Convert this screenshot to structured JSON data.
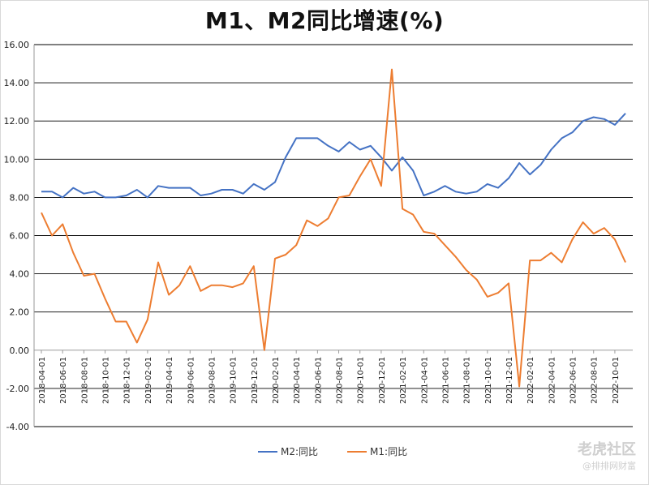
{
  "title": "M1、M2同比增速(%)",
  "watermark": {
    "main": "老虎社区",
    "sub": "@排排网财富"
  },
  "chart_data": {
    "type": "line",
    "title": "M1、M2同比增速(%)",
    "ylim": [
      -4,
      16
    ],
    "yticks": [
      "16.00",
      "14.00",
      "12.00",
      "10.00",
      "8.00",
      "6.00",
      "4.00",
      "2.00",
      "0.00",
      "-2.00",
      "-4.00"
    ],
    "grid": true,
    "legend_position": "bottom-center",
    "x": [
      "2018-04",
      "2018-05",
      "2018-06",
      "2018-07",
      "2018-08",
      "2018-09",
      "2018-10",
      "2018-11",
      "2018-12",
      "2019-01",
      "2019-02",
      "2019-03",
      "2019-04",
      "2019-05",
      "2019-06",
      "2019-07",
      "2019-08",
      "2019-09",
      "2019-10",
      "2019-11",
      "2019-12",
      "2020-01",
      "2020-02",
      "2020-03",
      "2020-04",
      "2020-05",
      "2020-06",
      "2020-07",
      "2020-08",
      "2020-09",
      "2020-10",
      "2020-11",
      "2020-12",
      "2021-01",
      "2021-02",
      "2021-03",
      "2021-04",
      "2021-05",
      "2021-06",
      "2021-07",
      "2021-08",
      "2021-09",
      "2021-10",
      "2021-11",
      "2021-12",
      "2022-01",
      "2022-02",
      "2022-03",
      "2022-04",
      "2022-05",
      "2022-06",
      "2022-07",
      "2022-08",
      "2022-09",
      "2022-10",
      "2022-11"
    ],
    "xtick_labels": [
      "2018-04-01",
      "2018-06-01",
      "2018-08-01",
      "2018-10-01",
      "2018-12-01",
      "2019-02-01",
      "2019-04-01",
      "2019-06-01",
      "2019-08-01",
      "2019-10-01",
      "2019-12-01",
      "2020-02-01",
      "2020-04-01",
      "2020-06-01",
      "2020-08-01",
      "2020-10-01",
      "2020-12-01",
      "2021-02-01",
      "2021-04-01",
      "2021-06-01",
      "2021-08-01",
      "2021-10-01",
      "2021-12-01",
      "2022-02-01",
      "2022-04-01",
      "2022-06-01",
      "2022-08-01",
      "2022-10-01"
    ],
    "series": [
      {
        "name": "M2:同比",
        "color": "#4472c4",
        "values": [
          8.3,
          8.3,
          8.0,
          8.5,
          8.2,
          8.3,
          8.0,
          8.0,
          8.1,
          8.4,
          8.0,
          8.6,
          8.5,
          8.5,
          8.5,
          8.1,
          8.2,
          8.4,
          8.4,
          8.2,
          8.7,
          8.4,
          8.8,
          10.1,
          11.1,
          11.1,
          11.1,
          10.7,
          10.4,
          10.9,
          10.5,
          10.7,
          10.1,
          9.4,
          10.1,
          9.4,
          8.1,
          8.3,
          8.6,
          8.3,
          8.2,
          8.3,
          8.7,
          8.5,
          9.0,
          9.8,
          9.2,
          9.7,
          10.5,
          11.1,
          11.4,
          12.0,
          12.2,
          12.1,
          11.8,
          12.4
        ]
      },
      {
        "name": "M1:同比",
        "color": "#ed7d31",
        "values": [
          7.2,
          6.0,
          6.6,
          5.1,
          3.9,
          4.0,
          2.7,
          1.5,
          1.5,
          0.4,
          1.6,
          4.6,
          2.9,
          3.4,
          4.4,
          3.1,
          3.4,
          3.4,
          3.3,
          3.5,
          4.4,
          0.0,
          4.8,
          5.0,
          5.5,
          6.8,
          6.5,
          6.9,
          8.0,
          8.1,
          9.1,
          10.0,
          8.6,
          14.7,
          7.4,
          7.1,
          6.2,
          6.1,
          5.5,
          4.9,
          4.2,
          3.7,
          2.8,
          3.0,
          3.5,
          -1.9,
          4.7,
          4.7,
          5.1,
          4.6,
          5.8,
          6.7,
          6.1,
          6.4,
          5.8,
          4.6
        ]
      }
    ]
  }
}
